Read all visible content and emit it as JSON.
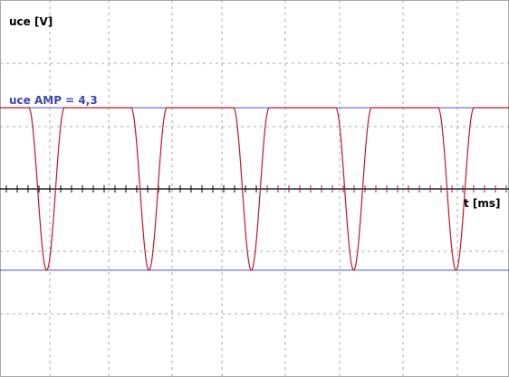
{
  "chart_data": {
    "type": "line",
    "title": "",
    "ylabel": "uce [V]",
    "xlabel": "t [ms]",
    "annotation": "uce AMP = 4,3",
    "amplitude": 4.3,
    "ylim": [
      -7.6,
      12.3
    ],
    "xlim": [
      0,
      12
    ],
    "grid": true,
    "cycles": 5,
    "series": [
      {
        "values_desc": "periodic clipped waveform"
      }
    ],
    "colors": {
      "signal": "#c0182a",
      "amplitude_lines": "#4d4dc8",
      "annotation_text": "#3c46b4",
      "grid": "#a8a8a8",
      "axis": "#000000",
      "ticks_positive": "#000000",
      "ticks_negative": "#8b1a6b"
    }
  }
}
